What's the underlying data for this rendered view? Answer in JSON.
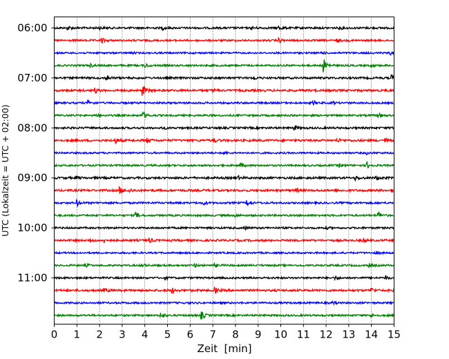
{
  "chart_data": {
    "type": "line",
    "title": "",
    "xlabel": "Zeit  [min]",
    "ylabel": "UTC (Lokalzeit = UTC + 02:00)",
    "xlim": [
      0,
      15
    ],
    "x_ticks": [
      "0",
      "1",
      "2",
      "3",
      "4",
      "5",
      "6",
      "7",
      "8",
      "9",
      "10",
      "11",
      "12",
      "13",
      "14",
      "15"
    ],
    "y_ticks": [
      "06:00",
      "07:00",
      "08:00",
      "09:00",
      "10:00",
      "11:00"
    ],
    "grid_x": true,
    "trace_interval_min": 15,
    "trace_colors": [
      "#000000",
      "#ff0000",
      "#0000ff",
      "#008000"
    ],
    "traces": [
      {
        "start": "06:00",
        "color": "#000000",
        "noise": 1.4,
        "events": [
          {
            "t": 0.6,
            "a": 3.2
          },
          {
            "t": 2.0,
            "a": 1.5
          },
          {
            "t": 4.8,
            "a": 1.8
          },
          {
            "t": 8.7,
            "a": 2.0
          },
          {
            "t": 9.9,
            "a": 3.0
          },
          {
            "t": 12.6,
            "a": 1.8
          }
        ]
      },
      {
        "start": "06:15",
        "color": "#ff0000",
        "noise": 1.3,
        "events": [
          {
            "t": 2.1,
            "a": 3.5
          },
          {
            "t": 9.9,
            "a": 3.2
          },
          {
            "t": 12.5,
            "a": 1.5
          }
        ]
      },
      {
        "start": "06:30",
        "color": "#0000ff",
        "noise": 1.2,
        "events": [
          {
            "t": 3.4,
            "a": 1.4
          },
          {
            "t": 11.8,
            "a": 1.4
          },
          {
            "t": 14.8,
            "a": 3.5
          }
        ]
      },
      {
        "start": "06:45",
        "color": "#008000",
        "noise": 1.3,
        "events": [
          {
            "t": 1.6,
            "a": 2.2
          },
          {
            "t": 4.0,
            "a": 2.8
          },
          {
            "t": 11.9,
            "a": 9.5
          },
          {
            "t": 14.0,
            "a": 1.6
          }
        ]
      },
      {
        "start": "07:00",
        "color": "#000000",
        "noise": 1.4,
        "events": [
          {
            "t": 2.3,
            "a": 5.0
          },
          {
            "t": 8.8,
            "a": 1.8
          },
          {
            "t": 14.9,
            "a": 3.5
          }
        ]
      },
      {
        "start": "07:15",
        "color": "#ff0000",
        "noise": 1.5,
        "events": [
          {
            "t": 1.8,
            "a": 3.0
          },
          {
            "t": 3.9,
            "a": 7.0
          },
          {
            "t": 7.0,
            "a": 2.0
          }
        ]
      },
      {
        "start": "07:30",
        "color": "#0000ff",
        "noise": 1.3,
        "events": [
          {
            "t": 1.5,
            "a": 3.0
          },
          {
            "t": 11.4,
            "a": 3.0
          },
          {
            "t": 12.3,
            "a": 1.5
          }
        ]
      },
      {
        "start": "07:45",
        "color": "#008000",
        "noise": 1.3,
        "events": [
          {
            "t": 1.8,
            "a": 2.0
          },
          {
            "t": 3.9,
            "a": 5.5
          },
          {
            "t": 14.3,
            "a": 3.0
          }
        ]
      },
      {
        "start": "08:00",
        "color": "#000000",
        "noise": 1.4,
        "events": [
          {
            "t": 4.8,
            "a": 1.6
          },
          {
            "t": 10.6,
            "a": 2.8
          },
          {
            "t": 14.9,
            "a": 1.6
          }
        ]
      },
      {
        "start": "08:15",
        "color": "#ff0000",
        "noise": 1.5,
        "events": [
          {
            "t": 2.7,
            "a": 3.5
          },
          {
            "t": 4.1,
            "a": 2.8
          },
          {
            "t": 7.0,
            "a": 3.0
          },
          {
            "t": 12.5,
            "a": 2.6
          },
          {
            "t": 14.6,
            "a": 2.4
          }
        ]
      },
      {
        "start": "08:30",
        "color": "#0000ff",
        "noise": 1.2,
        "events": [
          {
            "t": 7.5,
            "a": 1.6
          },
          {
            "t": 13.8,
            "a": 1.4
          }
        ]
      },
      {
        "start": "08:45",
        "color": "#008000",
        "noise": 1.3,
        "events": [
          {
            "t": 8.2,
            "a": 3.2
          },
          {
            "t": 12.6,
            "a": 2.0
          },
          {
            "t": 13.8,
            "a": 4.0
          }
        ]
      },
      {
        "start": "09:00",
        "color": "#000000",
        "noise": 1.5,
        "events": [
          {
            "t": 1.0,
            "a": 1.8
          },
          {
            "t": 8.1,
            "a": 2.6
          },
          {
            "t": 13.3,
            "a": 2.8
          },
          {
            "t": 14.2,
            "a": 3.5
          }
        ]
      },
      {
        "start": "09:15",
        "color": "#ff0000",
        "noise": 1.5,
        "events": [
          {
            "t": 2.9,
            "a": 4.5
          },
          {
            "t": 3.3,
            "a": 2.5
          },
          {
            "t": 10.7,
            "a": 2.2
          },
          {
            "t": 14.9,
            "a": 2.0
          }
        ]
      },
      {
        "start": "09:30",
        "color": "#0000ff",
        "noise": 1.3,
        "events": [
          {
            "t": 1.0,
            "a": 4.5
          },
          {
            "t": 6.6,
            "a": 2.0
          },
          {
            "t": 8.5,
            "a": 4.0
          }
        ]
      },
      {
        "start": "09:45",
        "color": "#008000",
        "noise": 1.3,
        "events": [
          {
            "t": 3.6,
            "a": 3.5
          },
          {
            "t": 8.0,
            "a": 1.5
          },
          {
            "t": 14.3,
            "a": 5.0
          }
        ]
      },
      {
        "start": "10:00",
        "color": "#000000",
        "noise": 1.3,
        "events": [
          {
            "t": 8.4,
            "a": 2.0
          },
          {
            "t": 12.0,
            "a": 1.6
          }
        ]
      },
      {
        "start": "10:15",
        "color": "#ff0000",
        "noise": 1.4,
        "events": [
          {
            "t": 1.6,
            "a": 2.2
          },
          {
            "t": 2.2,
            "a": 3.0
          },
          {
            "t": 4.2,
            "a": 3.2
          },
          {
            "t": 13.6,
            "a": 2.4
          }
        ]
      },
      {
        "start": "10:30",
        "color": "#0000ff",
        "noise": 1.2,
        "events": [
          {
            "t": 14.2,
            "a": 1.8
          }
        ]
      },
      {
        "start": "10:45",
        "color": "#008000",
        "noise": 1.3,
        "events": [
          {
            "t": 1.4,
            "a": 1.8
          },
          {
            "t": 3.9,
            "a": 2.2
          },
          {
            "t": 6.2,
            "a": 2.0
          },
          {
            "t": 7.1,
            "a": 2.0
          },
          {
            "t": 13.9,
            "a": 2.0
          }
        ]
      },
      {
        "start": "11:00",
        "color": "#000000",
        "noise": 1.3,
        "events": [
          {
            "t": 4.9,
            "a": 1.8
          },
          {
            "t": 12.4,
            "a": 2.0
          },
          {
            "t": 14.6,
            "a": 2.4
          }
        ]
      },
      {
        "start": "11:15",
        "color": "#ff0000",
        "noise": 1.5,
        "events": [
          {
            "t": 2.2,
            "a": 2.4
          },
          {
            "t": 5.2,
            "a": 3.5
          },
          {
            "t": 7.1,
            "a": 3.5
          },
          {
            "t": 14.0,
            "a": 3.0
          }
        ]
      },
      {
        "start": "11:30",
        "color": "#0000ff",
        "noise": 1.3,
        "events": [
          {
            "t": 12.3,
            "a": 1.6
          }
        ]
      },
      {
        "start": "11:45",
        "color": "#008000",
        "noise": 1.3,
        "events": [
          {
            "t": 4.7,
            "a": 4.5
          },
          {
            "t": 6.5,
            "a": 5.5
          },
          {
            "t": 14.0,
            "a": 2.2
          }
        ]
      }
    ]
  }
}
